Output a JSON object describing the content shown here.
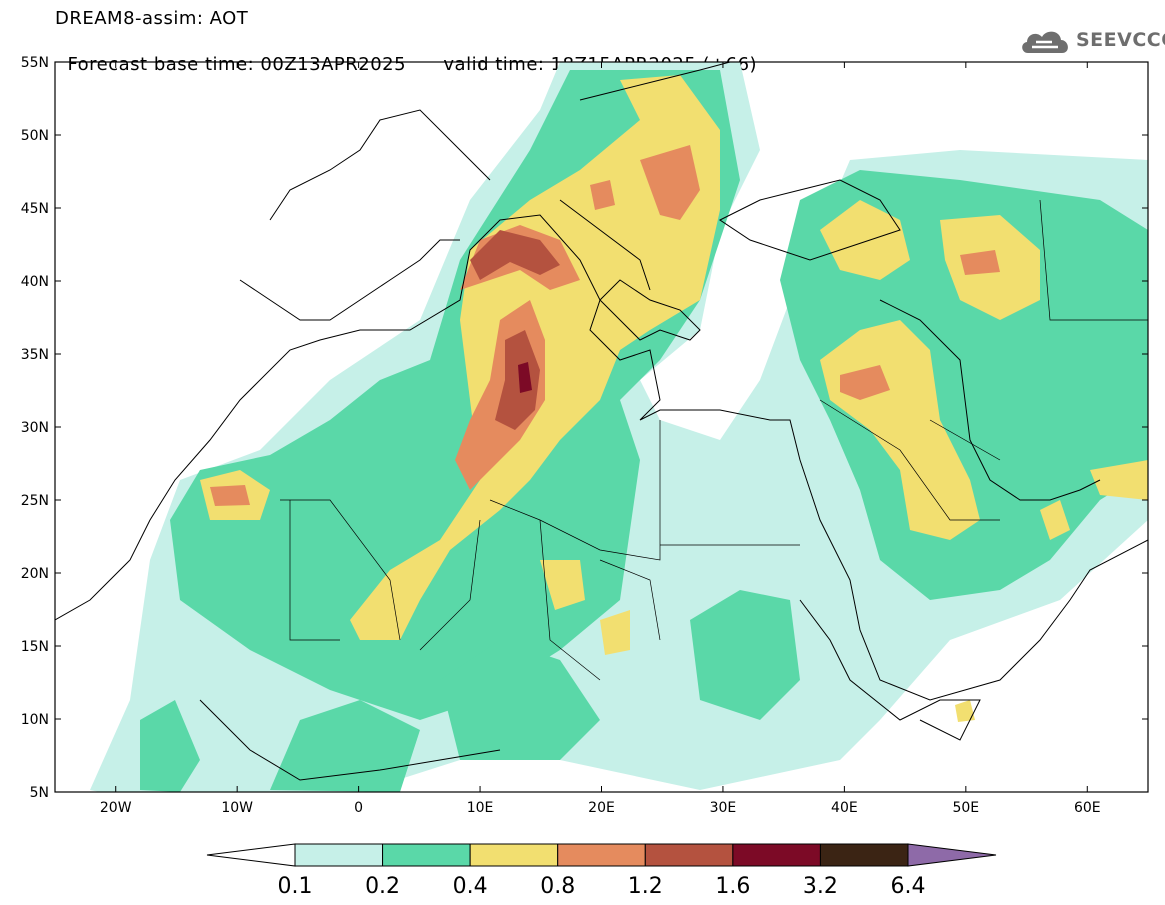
{
  "header": {
    "title": "DREAM8-assim: AOT",
    "base_time": "Forecast base time: 00Z13APR2025",
    "valid_time": "valid time: 18Z15APR2025 (+66)"
  },
  "logo": {
    "text": "SEEVCCC",
    "icon": "cloud-icon"
  },
  "map": {
    "lon_range": [
      -25,
      65
    ],
    "lat_range": [
      5,
      55
    ],
    "lat_labels": [
      "5N",
      "10N",
      "15N",
      "20N",
      "25N",
      "30N",
      "35N",
      "40N",
      "45N",
      "50N",
      "55N"
    ],
    "lon_labels": [
      "20W",
      "10W",
      "0",
      "10E",
      "20E",
      "30E",
      "40E",
      "50E",
      "60E"
    ]
  },
  "colorbar": {
    "labels": [
      "0.1",
      "0.2",
      "0.4",
      "0.8",
      "1.2",
      "1.6",
      "3.2",
      "6.4"
    ],
    "colors": [
      "#ffffff",
      "#c6f0e8",
      "#5ad8a8",
      "#f2df70",
      "#e58b5e",
      "#b4523f",
      "#7c0a26",
      "#3b2414",
      "#8e6aa8"
    ]
  }
}
